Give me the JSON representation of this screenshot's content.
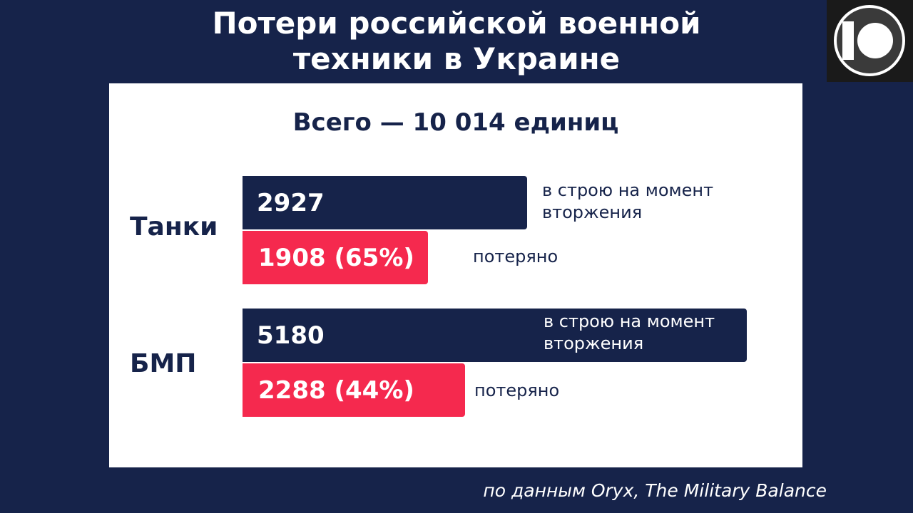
{
  "header": {
    "title_line1": "Потери российской военной",
    "title_line2": "техники в Украине"
  },
  "logo": {
    "icon": "channel-10-logo",
    "text": "10"
  },
  "chart_data": {
    "type": "bar",
    "subtitle": "Всего — 10 014 единиц",
    "categories": [
      "Танки",
      "БМП"
    ],
    "series": [
      {
        "name": "в строю на момент вторжения",
        "values": [
          2927,
          5180
        ]
      },
      {
        "name": "потеряно",
        "values": [
          1908,
          2288
        ],
        "percent": [
          "65%",
          "44%"
        ]
      }
    ],
    "colors": {
      "total": "#16234a",
      "lost": "#f5294e"
    }
  },
  "groups": [
    {
      "label": "Танки",
      "total_text": "2927",
      "total_note_line1": "в строю на момент",
      "total_note_line2": "вторжения",
      "lost_text": "1908 (65%)",
      "lost_note": "потеряно"
    },
    {
      "label": "БМП",
      "total_text": "5180",
      "total_note_line1": "в строю на момент",
      "total_note_line2": "вторжения",
      "lost_text": "2288 (44%)",
      "lost_note": "потеряно"
    }
  ],
  "source": "по данным Oryx, The Military Balance"
}
